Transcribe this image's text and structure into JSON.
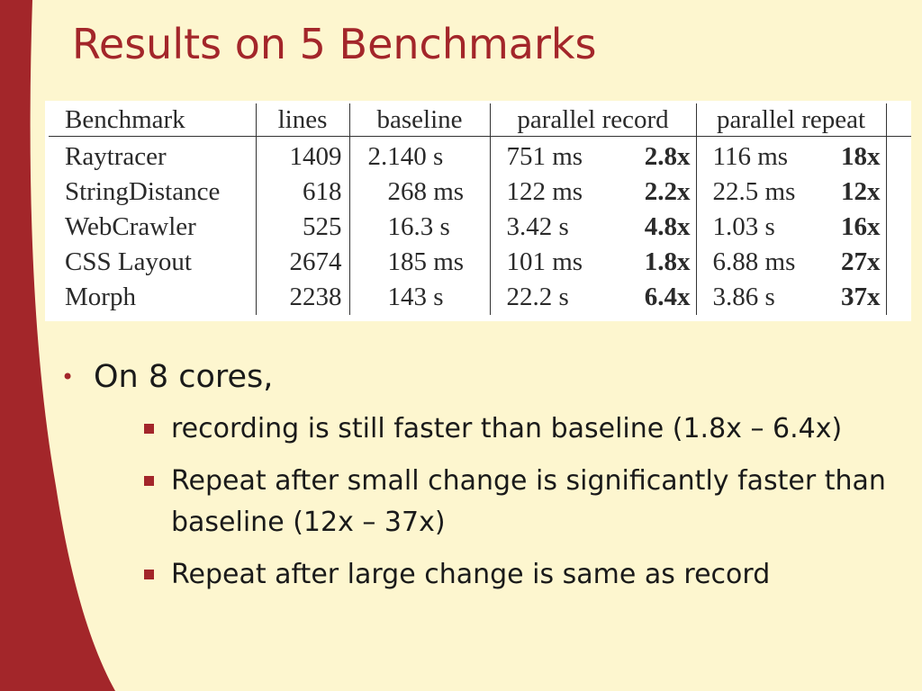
{
  "slide": {
    "title": "Results on 5 Benchmarks",
    "theme_colors": {
      "background": "#fdf6cf",
      "accent": "#a3262a"
    }
  },
  "table": {
    "headers": {
      "benchmark": "Benchmark",
      "lines": "lines",
      "baseline": "baseline",
      "parallel_record": "parallel record",
      "parallel_repeat": "parallel repeat"
    },
    "rows": [
      {
        "benchmark": "Raytracer",
        "lines": "1409",
        "baseline": "2.140 s",
        "record_time": "751 ms",
        "record_speedup": "2.8x",
        "repeat_time": "116 ms",
        "repeat_speedup": "18x"
      },
      {
        "benchmark": "StringDistance",
        "lines": "618",
        "baseline": "268 ms",
        "record_time": "122 ms",
        "record_speedup": "2.2x",
        "repeat_time": "22.5 ms",
        "repeat_speedup": "12x"
      },
      {
        "benchmark": "WebCrawler",
        "lines": "525",
        "baseline": "16.3 s",
        "record_time": "3.42 s",
        "record_speedup": "4.8x",
        "repeat_time": "1.03 s",
        "repeat_speedup": "16x"
      },
      {
        "benchmark": "CSS Layout",
        "lines": "2674",
        "baseline": "185 ms",
        "record_time": "101 ms",
        "record_speedup": "1.8x",
        "repeat_time": "6.88 ms",
        "repeat_speedup": "27x"
      },
      {
        "benchmark": "Morph",
        "lines": "2238",
        "baseline": "143 s",
        "record_time": "22.2 s",
        "record_speedup": "6.4x",
        "repeat_time": "3.86 s",
        "repeat_speedup": "37x"
      }
    ]
  },
  "bullets": {
    "main": "On 8 cores,",
    "sub": [
      "recording is still faster than baseline  (1.8x – 6.4x)",
      "Repeat after small change is significantly faster than baseline (12x – 37x)",
      "Repeat after large change is same as record"
    ]
  }
}
